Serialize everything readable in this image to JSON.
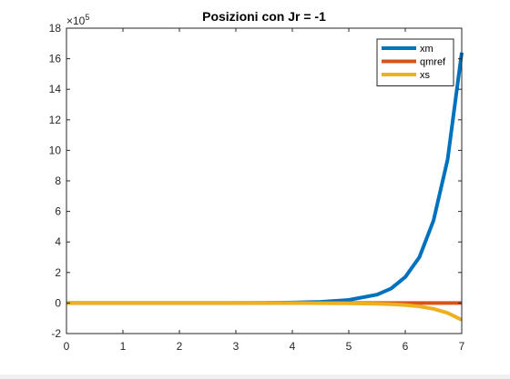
{
  "chart_data": {
    "type": "line",
    "title": "Posizioni con Jr = -1",
    "xlabel": "",
    "ylabel": "",
    "xlim": [
      0,
      7
    ],
    "ylim": [
      -2,
      18
    ],
    "y_multiplier_label": "×10",
    "y_multiplier_exponent": "5",
    "x_ticks": [
      0,
      1,
      2,
      3,
      4,
      5,
      6,
      7
    ],
    "y_ticks": [
      -2,
      0,
      2,
      4,
      6,
      8,
      10,
      12,
      14,
      16,
      18
    ],
    "x": [
      0,
      0.5,
      1,
      1.5,
      2,
      2.5,
      3,
      3.5,
      4,
      4.5,
      5,
      5.5,
      5.75,
      6,
      6.25,
      6.5,
      6.75,
      7
    ],
    "series": [
      {
        "name": "xm",
        "color": "#0072BD",
        "values": [
          0,
          0,
          0,
          0,
          0,
          0,
          0,
          0.01,
          0.03,
          0.08,
          0.2,
          0.55,
          0.95,
          1.7,
          3.0,
          5.4,
          9.4,
          16.4
        ]
      },
      {
        "name": "qmref",
        "color": "#D95319",
        "values": [
          0,
          0,
          0,
          0,
          0,
          0,
          0,
          0,
          0,
          0,
          0,
          0,
          0,
          0,
          0,
          0,
          0,
          0
        ]
      },
      {
        "name": "xs",
        "color": "#EDB120",
        "values": [
          0,
          0,
          0,
          0,
          0,
          0,
          0,
          0,
          0,
          -0.01,
          -0.02,
          -0.05,
          -0.08,
          -0.13,
          -0.22,
          -0.38,
          -0.65,
          -1.1
        ]
      }
    ],
    "legend_position": "top-right",
    "grid": false
  }
}
